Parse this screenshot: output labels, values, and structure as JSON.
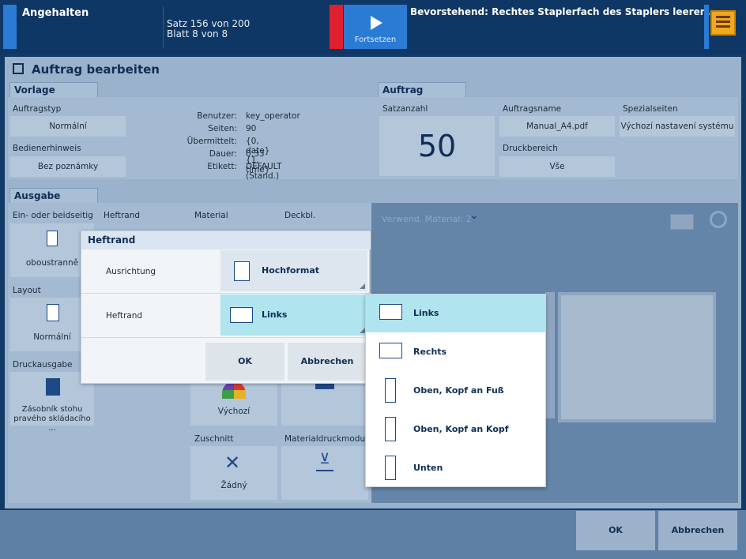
{
  "topbar": {
    "status": "Angehalten",
    "set_progress": "Satz 156 von 200",
    "sheet_progress": "Blatt 8 von 8",
    "resume_label": "Fortsetzen",
    "upcoming": "Bevorstehend: Rechtes Staplerfach des Staplers leeren."
  },
  "window": {
    "title": "Auftrag bearbeiten"
  },
  "vorlage": {
    "tab": "Vorlage",
    "auftragstyp_label": "Auftragstyp",
    "auftragstyp_value": "Normální",
    "bedienerhinweis_label": "Bedienerhinweis",
    "bedienerhinweis_value": "Bez poznámky",
    "info": [
      {
        "key": "Benutzer:",
        "value": "key_operator"
      },
      {
        "key": "Seiten:",
        "value": "90"
      },
      {
        "key": "Übermittelt:",
        "value": "{0, date} {1, time}"
      },
      {
        "key": "Dauer:",
        "value": "0:33"
      },
      {
        "key": "Etikett:",
        "value": "DEFAULT (Stand.)"
      }
    ]
  },
  "auftrag": {
    "tab": "Auftrag",
    "satzanzahl_label": "Satzanzahl",
    "satzanzahl_value": "50",
    "auftragsname_label": "Auftragsname",
    "auftragsname_value": "Manual_A4.pdf",
    "druckbereich_label": "Druckbereich",
    "druckbereich_value": "Vše",
    "spezialseiten_label": "Spezialseiten",
    "spezialseiten_value": "Výchozí nastavení systému"
  },
  "ausgabe": {
    "tab": "Ausgabe",
    "col_labels": [
      "Ein- oder beidseitig",
      "Heftrand",
      "Material",
      "Deckbl."
    ],
    "einseitig_value": "oboustranně",
    "layout_label": "Layout",
    "layout_value": "Normální",
    "druckausgabe_label": "Druckausgabe",
    "druckausgabe_value": "Zásobník stohu pravého skládacího ...",
    "farbe_value": "Výchozí",
    "zuschnitt_label": "Zuschnitt",
    "zuschnitt_value": "Žádný",
    "materialdruckmodus_label": "Materialdruckmodus",
    "preview_label": "Verwend. Material: 2"
  },
  "dialog": {
    "title": "Heftrand",
    "ausrichtung_label": "Ausrichtung",
    "ausrichtung_value": "Hochformat",
    "heftrand_label": "Heftrand",
    "heftrand_value": "Links",
    "ok": "OK",
    "cancel": "Abbrechen"
  },
  "dropdown": {
    "options": [
      "Links",
      "Rechts",
      "Oben, Kopf an Fuß",
      "Oben, Kopf an Kopf",
      "Unten"
    ],
    "selected": "Links"
  },
  "footer": {
    "ok": "OK",
    "cancel": "Abbrechen"
  },
  "colors": {
    "accent": "#2a7bd4",
    "alert": "#e0202e",
    "selected": "#b0e4ef"
  }
}
